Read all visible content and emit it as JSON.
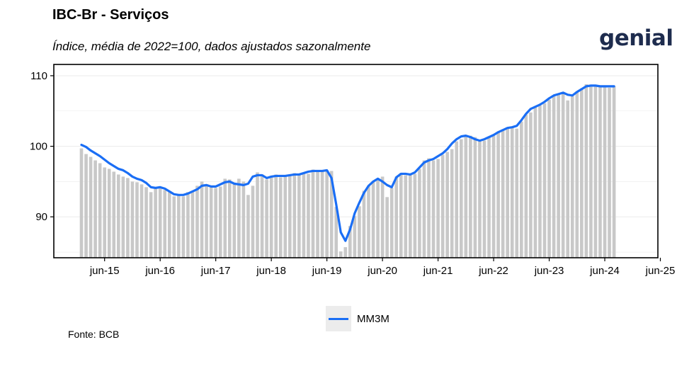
{
  "header": {
    "title": "IBC-Br - Serviços",
    "subtitle": "Índice, média de 2022=100, dados ajustados sazonalmente",
    "logo_text": "genial"
  },
  "source": "Fonte: BCB",
  "colors": {
    "bars": "#c8c8c8",
    "line": "#1a6ef5",
    "axis": "#000000",
    "grid": "#ebebeb"
  },
  "chart_data": {
    "type": "bar",
    "x_start": "2015-01",
    "x_ticks": [
      {
        "month": "2015-06",
        "label": "jun-15"
      },
      {
        "month": "2016-06",
        "label": "jun-16"
      },
      {
        "month": "2017-06",
        "label": "jun-17"
      },
      {
        "month": "2018-06",
        "label": "jun-18"
      },
      {
        "month": "2019-06",
        "label": "jun-19"
      },
      {
        "month": "2020-06",
        "label": "jun-20"
      },
      {
        "month": "2021-06",
        "label": "jun-21"
      },
      {
        "month": "2022-06",
        "label": "jun-22"
      },
      {
        "month": "2023-06",
        "label": "jun-23"
      },
      {
        "month": "2024-06",
        "label": "jun-24"
      },
      {
        "month": "2025-06",
        "label": "jun-25"
      }
    ],
    "y_ticks": [
      90,
      100,
      110
    ],
    "ylim": [
      84.2,
      111.6
    ],
    "values": [
      99.7,
      98.9,
      98.5,
      98.0,
      97.6,
      97.0,
      96.8,
      96.4,
      96.0,
      95.7,
      95.5,
      95.0,
      94.9,
      94.6,
      94.2,
      93.5,
      94.2,
      94.1,
      93.8,
      93.5,
      92.9,
      93.0,
      92.9,
      93.5,
      93.6,
      94.4,
      95.0,
      94.6,
      94.4,
      94.1,
      94.3,
      95.4,
      95.3,
      94.8,
      95.4,
      95.0,
      93.1,
      94.4,
      96.3,
      96.0,
      95.3,
      95.8,
      96.0,
      95.6,
      95.8,
      95.9,
      96.2,
      96.0,
      96.1,
      96.1,
      96.7,
      96.5,
      96.4,
      96.6,
      96.5,
      91.4,
      85.1,
      85.7,
      88.7,
      90.1,
      91.5,
      93.7,
      94.4,
      95.1,
      95.2,
      95.7,
      92.8,
      94.1,
      95.7,
      96.2,
      95.9,
      96.1,
      96.1,
      96.8,
      98.0,
      98.3,
      98.0,
      98.2,
      98.8,
      99.2,
      99.6,
      100.7,
      101.0,
      101.6,
      101.5,
      101.3,
      100.8,
      100.8,
      101.3,
      101.5,
      102.0,
      102.4,
      102.7,
      102.8,
      102.5,
      103.5,
      104.5,
      104.8,
      105.5,
      105.8,
      106.1,
      106.6,
      107.2,
      107.4,
      107.7,
      106.5,
      107.1,
      107.8,
      108.2,
      108.8,
      108.7,
      108.5,
      108.4,
      108.5,
      108.3,
      108.5
    ],
    "series": [
      {
        "name": "MM3M",
        "values": [
          100.2,
          99.9,
          99.4,
          99.0,
          98.6,
          98.1,
          97.6,
          97.2,
          96.8,
          96.6,
          96.2,
          95.7,
          95.4,
          95.2,
          94.8,
          94.2,
          94.1,
          94.2,
          94.0,
          93.6,
          93.2,
          93.1,
          93.1,
          93.3,
          93.6,
          93.9,
          94.4,
          94.5,
          94.3,
          94.3,
          94.6,
          94.9,
          95.0,
          94.7,
          94.6,
          94.5,
          94.7,
          95.7,
          95.9,
          95.9,
          95.5,
          95.7,
          95.8,
          95.8,
          95.8,
          95.9,
          96.0,
          96.0,
          96.2,
          96.4,
          96.5,
          96.5,
          96.5,
          96.6,
          95.5,
          91.8,
          87.8,
          86.6,
          88.2,
          90.5,
          92.0,
          93.4,
          94.4,
          95.0,
          95.4,
          95.0,
          94.5,
          94.2,
          95.6,
          96.1,
          96.1,
          96.0,
          96.3,
          97.0,
          97.7,
          98.0,
          98.2,
          98.6,
          99.0,
          99.6,
          100.4,
          101.0,
          101.4,
          101.5,
          101.3,
          101.0,
          100.8,
          101.0,
          101.3,
          101.6,
          102.0,
          102.3,
          102.6,
          102.7,
          102.9,
          103.7,
          104.6,
          105.3,
          105.6,
          105.9,
          106.3,
          106.8,
          107.2,
          107.4,
          107.6,
          107.3,
          107.2,
          107.7,
          108.1,
          108.5,
          108.6,
          108.6,
          108.5,
          108.5,
          108.5,
          108.5
        ]
      }
    ],
    "legend": "bottom-center",
    "grid": true
  }
}
